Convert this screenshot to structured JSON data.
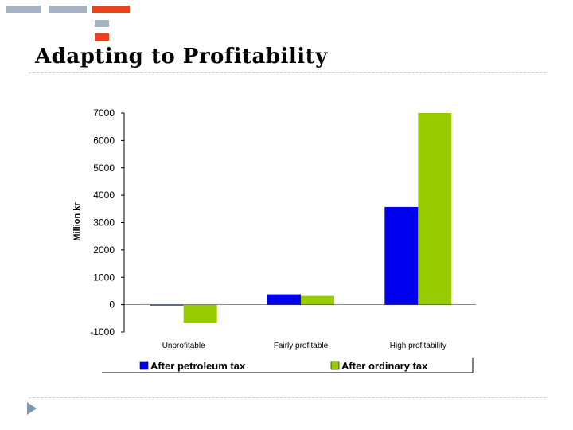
{
  "slide": {
    "title": "Adapting to Profitability"
  },
  "colors": {
    "deco_gray": "#a5b3c4",
    "deco_orange": "#e8431a",
    "nav_arrow": "#7f97b0",
    "rule": "#c9c9c9"
  },
  "icons": {
    "nav": "play-arrow-icon"
  },
  "chart_data": {
    "type": "bar",
    "categories": [
      "Unprofitable",
      "Fairly profitable",
      "High profitability"
    ],
    "series": [
      {
        "name": "After petroleum tax",
        "color": "#0000ee",
        "values": [
          -30,
          380,
          3570
        ]
      },
      {
        "name": "After ordinary tax",
        "color": "#99cc00",
        "values": [
          -660,
          320,
          7000
        ]
      }
    ],
    "ylabel": "Million kr",
    "xlabel": "",
    "title": "",
    "ylim": [
      -1000,
      7000
    ],
    "yticks": [
      7000,
      6000,
      5000,
      4000,
      3000,
      2000,
      1000,
      0,
      -1000
    ],
    "grid": false,
    "legend_position": "bottom"
  }
}
